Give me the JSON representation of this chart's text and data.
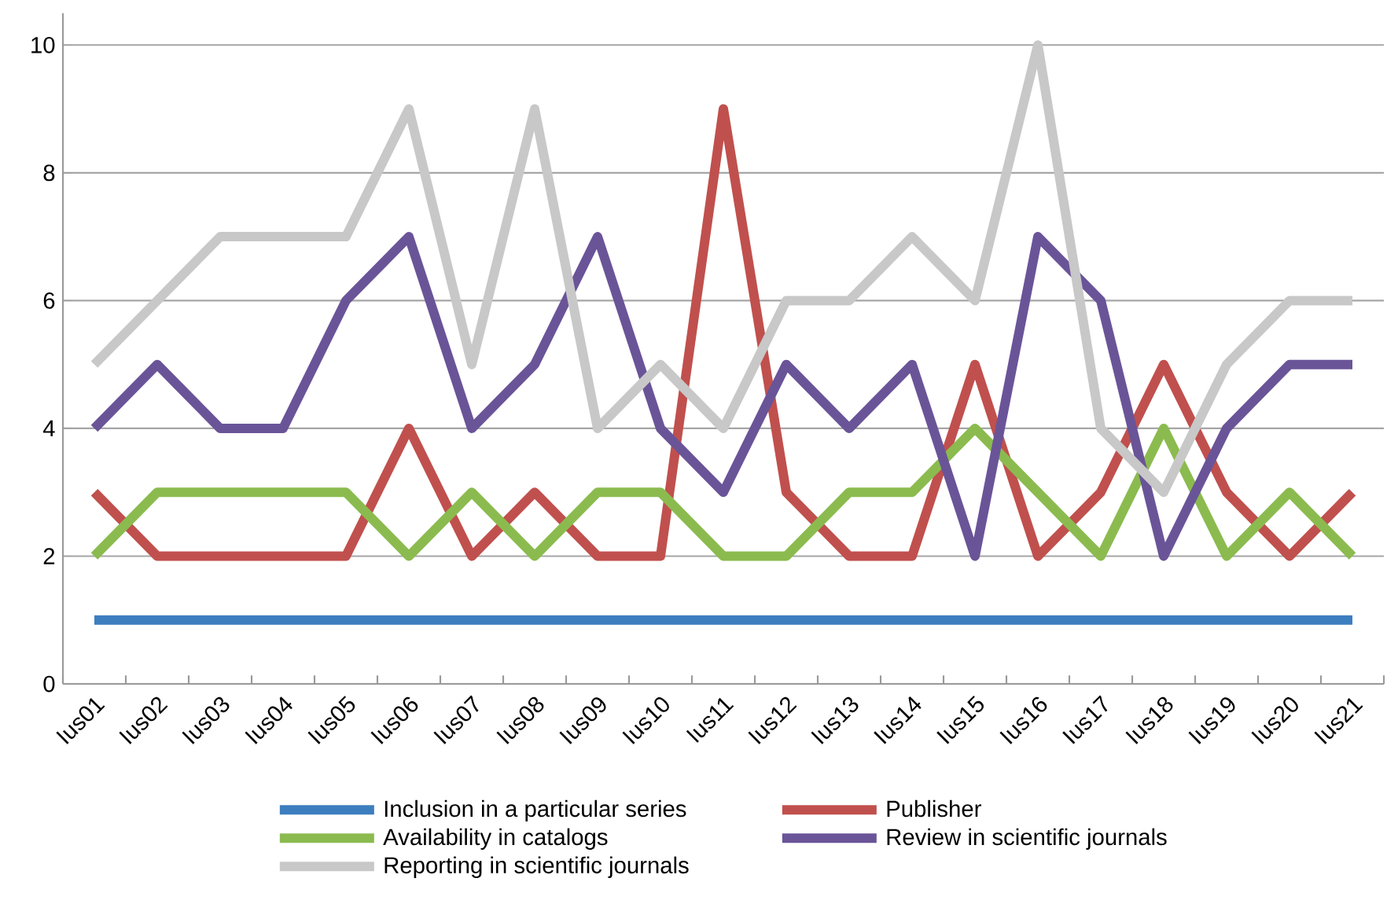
{
  "chart_data": {
    "type": "line",
    "categories": [
      "Ius01",
      "Ius02",
      "Ius03",
      "Ius04",
      "Ius05",
      "Ius06",
      "Ius07",
      "Ius08",
      "Ius09",
      "Ius10",
      "Ius11",
      "Ius12",
      "Ius13",
      "Ius14",
      "Ius15",
      "Ius16",
      "Ius17",
      "Ius18",
      "Ius19",
      "Ius20",
      "Ius21"
    ],
    "series": [
      {
        "name": "Inclusion in a particular series",
        "color": "#3d7ebf",
        "values": [
          1,
          1,
          1,
          1,
          1,
          1,
          1,
          1,
          1,
          1,
          1,
          1,
          1,
          1,
          1,
          1,
          1,
          1,
          1,
          1,
          1
        ]
      },
      {
        "name": "Publisher",
        "color": "#c0504d",
        "values": [
          3,
          2,
          2,
          2,
          2,
          4,
          2,
          3,
          2,
          2,
          9,
          3,
          2,
          2,
          5,
          2,
          3,
          5,
          3,
          2,
          3
        ]
      },
      {
        "name": "Availability in catalogs",
        "color": "#8bbb4f",
        "values": [
          2,
          3,
          3,
          3,
          3,
          2,
          3,
          2,
          3,
          3,
          2,
          2,
          3,
          3,
          4,
          3,
          2,
          4,
          2,
          3,
          2
        ]
      },
      {
        "name": "Review in scientific journals",
        "color": "#6a5498",
        "values": [
          4,
          5,
          4,
          4,
          6,
          7,
          4,
          5,
          7,
          4,
          3,
          5,
          4,
          5,
          2,
          7,
          6,
          2,
          4,
          5,
          5
        ]
      },
      {
        "name": "Reporting in scientific journals",
        "color": "#c8c8c8",
        "values": [
          5,
          6,
          7,
          7,
          7,
          9,
          5,
          9,
          4,
          5,
          4,
          6,
          6,
          7,
          6,
          10,
          4,
          3,
          5,
          6,
          6
        ]
      }
    ],
    "ylim": [
      0,
      10.5
    ],
    "yticks": [
      0,
      2,
      4,
      6,
      8,
      10
    ],
    "grid": "y",
    "legend": "bottom"
  }
}
